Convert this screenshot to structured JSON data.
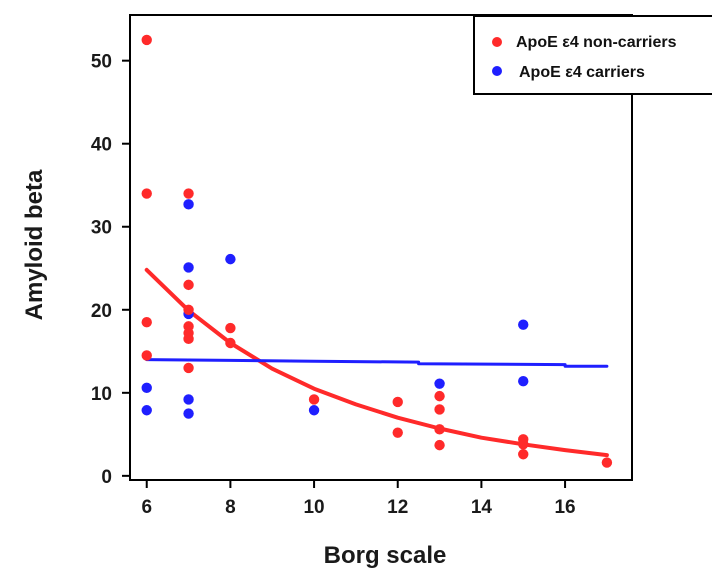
{
  "chart_data": {
    "type": "scatter",
    "xlabel": "Borg scale",
    "ylabel": "Amyloid beta",
    "xlim": [
      5.6,
      17.6
    ],
    "ylim": [
      -0.5,
      55.5
    ],
    "xticks": [
      6,
      8,
      10,
      12,
      14,
      16
    ],
    "yticks": [
      0,
      10,
      20,
      30,
      40,
      50
    ],
    "grid": false,
    "legend_position": "top-right",
    "series": [
      {
        "name": "ApoE ε4 non-carriers",
        "color": "#ff2a2a",
        "points": [
          [
            6,
            52.5
          ],
          [
            6,
            34
          ],
          [
            6,
            18.5
          ],
          [
            6,
            14.5
          ],
          [
            7,
            34
          ],
          [
            7,
            23
          ],
          [
            7,
            20
          ],
          [
            7,
            18
          ],
          [
            7,
            17.2
          ],
          [
            7,
            16.5
          ],
          [
            7,
            13
          ],
          [
            8,
            17.8
          ],
          [
            8,
            16
          ],
          [
            10,
            9.2
          ],
          [
            12,
            8.9
          ],
          [
            12,
            5.2
          ],
          [
            13,
            9.6
          ],
          [
            13,
            8
          ],
          [
            13,
            5.6
          ],
          [
            13,
            3.7
          ],
          [
            15,
            4.4
          ],
          [
            15,
            3.8
          ],
          [
            15,
            2.6
          ],
          [
            17,
            1.6
          ]
        ],
        "fit": [
          [
            6,
            24.8
          ],
          [
            7,
            19.9
          ],
          [
            8,
            16.0
          ],
          [
            9,
            12.9
          ],
          [
            10,
            10.5
          ],
          [
            11,
            8.6
          ],
          [
            12,
            7.0
          ],
          [
            13,
            5.7
          ],
          [
            14,
            4.6
          ],
          [
            15,
            3.8
          ],
          [
            16,
            3.1
          ],
          [
            17,
            2.5
          ]
        ]
      },
      {
        "name": "ApoE ε4 carriers",
        "color": "#1f1fff",
        "points": [
          [
            6,
            10.6
          ],
          [
            6,
            7.9
          ],
          [
            7,
            32.7
          ],
          [
            7,
            25.1
          ],
          [
            7,
            19.5
          ],
          [
            7,
            9.2
          ],
          [
            7,
            7.5
          ],
          [
            8,
            26.1
          ],
          [
            10,
            7.9
          ],
          [
            13,
            11.1
          ],
          [
            15,
            18.2
          ],
          [
            15,
            11.4
          ]
        ],
        "fit": [
          [
            6,
            14.0
          ],
          [
            8,
            13.9
          ],
          [
            10,
            13.8
          ],
          [
            12.5,
            13.7
          ],
          [
            12.5,
            13.5
          ],
          [
            16,
            13.4
          ],
          [
            16,
            13.2
          ],
          [
            17,
            13.2
          ]
        ]
      }
    ]
  }
}
